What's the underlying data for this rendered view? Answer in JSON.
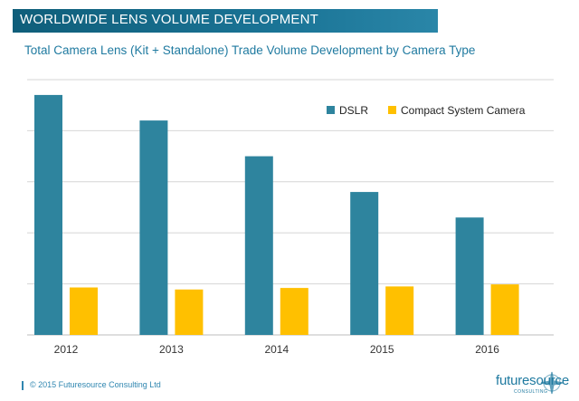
{
  "header": {
    "banner": "WORLDWIDE LENS VOLUME DEVELOPMENT",
    "subtitle": "Total Camera Lens (Kit + Standalone) Trade Volume Development by Camera Type"
  },
  "chart_data": {
    "type": "bar",
    "title": "Total Camera Lens (Kit + Standalone) Trade Volume Development by Camera Type",
    "categories": [
      "2012",
      "2013",
      "2014",
      "2015",
      "2016"
    ],
    "series": [
      {
        "name": "DSLR",
        "color": "#2e849e",
        "values": [
          4.7,
          4.2,
          3.5,
          2.8,
          2.3
        ]
      },
      {
        "name": "Compact System Camera",
        "color": "#ffc000",
        "values": [
          0.93,
          0.89,
          0.92,
          0.95,
          0.99
        ]
      }
    ],
    "ylim": [
      0,
      5
    ],
    "grid": true,
    "legend": "top-right",
    "xlabel": "",
    "ylabel": ""
  },
  "footer": {
    "copyright": "© 2015 Futuresource Consulting Ltd"
  },
  "logo": {
    "text": "futuresource",
    "subtext": "CONSULTING"
  }
}
